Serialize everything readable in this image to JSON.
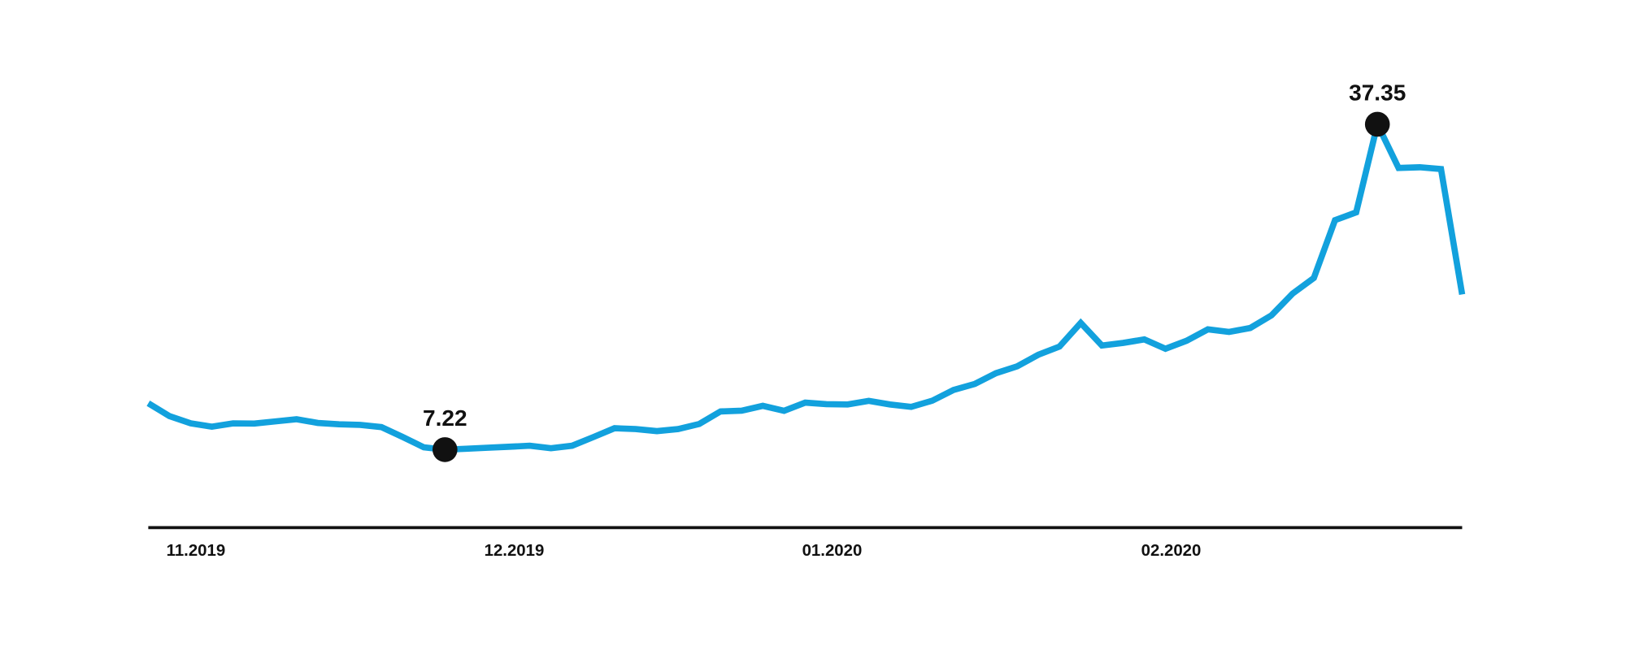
{
  "chart_data": {
    "type": "line",
    "categories": [
      null,
      "11.2019",
      null,
      null,
      null,
      null,
      null,
      null,
      null,
      null,
      null,
      null,
      null,
      null,
      null,
      null,
      "12.2019",
      null,
      null,
      null,
      null,
      null,
      null,
      null,
      null,
      null,
      null,
      null,
      null,
      null,
      null,
      "01.2020",
      null,
      null,
      null,
      null,
      null,
      null,
      null,
      null,
      null,
      null,
      null,
      null,
      null,
      null,
      null,
      "02.2020",
      null,
      null,
      null,
      null,
      null,
      null,
      null,
      null,
      null,
      null,
      null,
      null,
      null,
      null,
      null
    ],
    "series": [
      {
        "color": "#12a1dd",
        "values": [
          11.52,
          10.33,
          9.65,
          9.35,
          9.65,
          9.64,
          9.84,
          10.04,
          9.69,
          9.57,
          9.51,
          9.31,
          8.4,
          7.44,
          7.22,
          7.3,
          7.4,
          7.49,
          7.58,
          7.35,
          7.58,
          8.38,
          9.2,
          9.13,
          8.93,
          9.13,
          9.6,
          10.76,
          10.83,
          11.28,
          10.82,
          11.57,
          11.43,
          11.4,
          11.74,
          11.4,
          11.18,
          11.76,
          12.74,
          13.3,
          14.3,
          14.93,
          16.01,
          16.77,
          18.95,
          16.86,
          17.1,
          17.43,
          16.56,
          17.3,
          18.36,
          18.12,
          18.48,
          19.65,
          21.67,
          23.12,
          28.47,
          29.19,
          37.35,
          33.3,
          33.37,
          33.21,
          21.59
        ]
      }
    ],
    "ylim": [
      0,
      40
    ]
  }
}
